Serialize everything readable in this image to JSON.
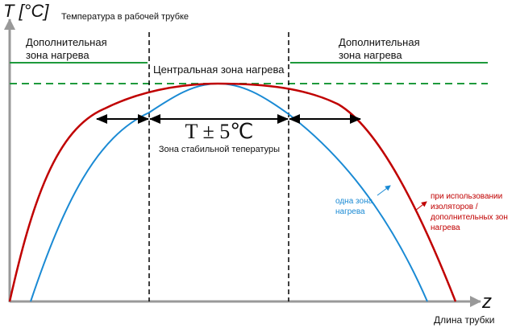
{
  "axis_y": {
    "symbol": "T [°C]",
    "label": "Температура в рабочей трубке"
  },
  "axis_x": {
    "symbol": "z",
    "label": "Длина трубки"
  },
  "zones": {
    "left": [
      "Дополнительная",
      "зона нагрева"
    ],
    "center": "Центральная зона нагрева",
    "right": [
      "Дополнительная",
      "зона нагрева"
    ]
  },
  "stable": {
    "tolerance": "T ± 5℃",
    "label": "Зона стабильной тепературы"
  },
  "curves": {
    "single": [
      "одна зона",
      "нагрева"
    ],
    "insulated": [
      "при использовании",
      "изоляторов /",
      "дополнительных зон",
      "нагрева"
    ]
  }
}
